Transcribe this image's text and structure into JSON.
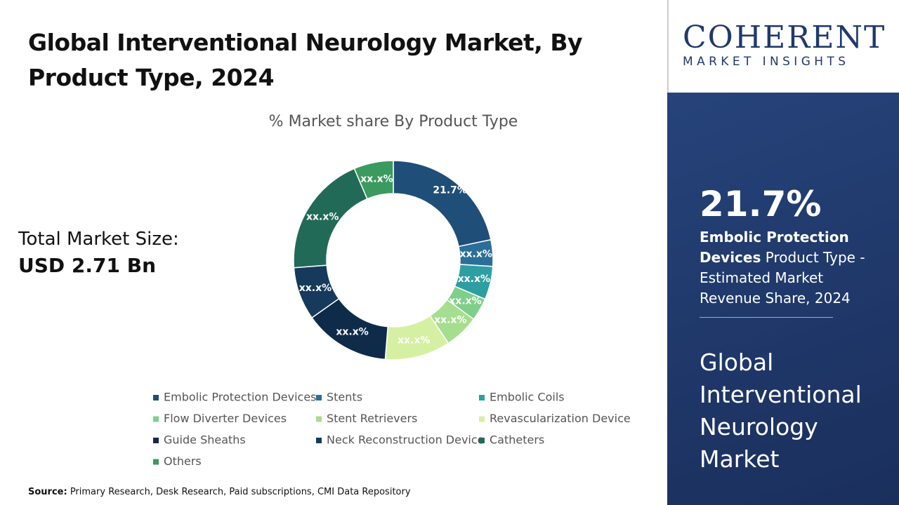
{
  "header": {
    "title": "Global Interventional Neurology Market, By Product Type, 2024"
  },
  "total_market": {
    "label": "Total Market Size:",
    "value": "USD 2.71 Bn"
  },
  "logo": {
    "name": "COHERENT",
    "tagline": "MARKET INSIGHTS"
  },
  "highlight": {
    "value": "21.7%",
    "segment": "Embolic Protection Devices",
    "description": " Product Type - Estimated Market Revenue Share, 2024",
    "market": "Global Interventional Neurology Market"
  },
  "source": {
    "label": "Source:",
    "text": " Primary Research, Desk Research, Paid subscriptions, CMI Data Repository"
  },
  "chart_data": {
    "type": "donut",
    "title": "% Market share By Product Type",
    "categories": [
      "Embolic Protection Devices",
      "Stents",
      "Embolic Coils",
      "Flow Diverter Devices",
      "Stent Retrievers",
      "Revascularization Device",
      "Guide Sheaths",
      "Neck Reconstruction Device",
      "Catheters",
      "Others"
    ],
    "values": [
      21.7,
      4.3,
      5.4,
      3.7,
      5.6,
      10.6,
      13.9,
      8.6,
      19.8,
      6.4
    ],
    "value_labels": [
      "21.7%",
      "xx.x%",
      "xx.x%",
      "xx.x%",
      "xx.x%",
      "xx.x%",
      "xx.x%",
      "xx.x%",
      "xx.x%",
      "xx.x%"
    ],
    "colors": [
      "#1f4e79",
      "#2b6f98",
      "#2f9ea3",
      "#7fcf8a",
      "#a5de8e",
      "#d6f0a3",
      "#0f2b4a",
      "#163a5c",
      "#226a58",
      "#3b9a5f"
    ]
  }
}
